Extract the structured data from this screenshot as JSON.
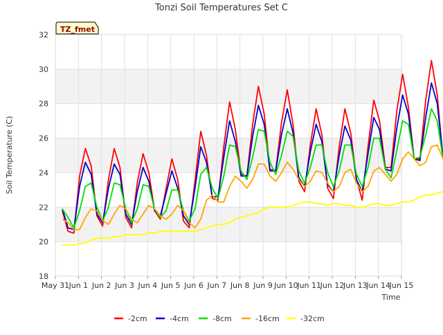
{
  "chart_data": {
    "type": "line",
    "title": "Tonzi Soil Temperatures Set C",
    "xlabel": "Time",
    "ylabel": "Soil Temperature (C)",
    "badge": "TZ_fmet",
    "xlim": [
      0,
      15
    ],
    "ylim": [
      18,
      32
    ],
    "x_ticks": [
      0,
      1,
      2,
      3,
      4,
      5,
      6,
      7,
      8,
      9,
      10,
      11,
      12,
      13,
      14,
      15
    ],
    "x_tick_labels": [
      "May 31",
      "Jun 1",
      "Jun 2",
      "Jun 3",
      "Jun 4",
      "Jun 5",
      "Jun 6",
      "Jun 7",
      "Jun 8",
      "Jun 9",
      "Jun 10",
      "Jun 11",
      "Jun 12",
      "Jun 13",
      "Jun 14",
      "Jun 15"
    ],
    "y_ticks": [
      18,
      20,
      22,
      24,
      26,
      28,
      30,
      32
    ],
    "grid": true,
    "legend_position": "bottom",
    "x_start": 0.3,
    "x_step": 0.25,
    "series": [
      {
        "name": "-2cm",
        "color": "#ff0000",
        "values": [
          21.8,
          20.6,
          20.5,
          23.8,
          25.4,
          24.4,
          21.5,
          20.9,
          23.6,
          25.4,
          24.3,
          21.4,
          20.8,
          23.4,
          25.1,
          24.0,
          21.8,
          21.3,
          23.1,
          24.8,
          23.6,
          21.2,
          20.8,
          23.5,
          26.4,
          25.0,
          22.5,
          22.4,
          25.5,
          28.1,
          26.5,
          23.9,
          23.8,
          26.8,
          29.0,
          27.4,
          24.2,
          24.1,
          26.9,
          28.8,
          26.8,
          23.5,
          22.9,
          25.6,
          27.7,
          26.2,
          23.1,
          22.5,
          25.5,
          27.7,
          26.3,
          23.6,
          22.4,
          25.5,
          28.2,
          27.0,
          24.3,
          24.3,
          27.6,
          29.7,
          27.8,
          24.8,
          24.8,
          28.2,
          30.5,
          28.5,
          24.8,
          24.1,
          26.9,
          29.4,
          28.2,
          25.7
        ]
      },
      {
        "name": "-4cm",
        "color": "#0000cc",
        "values": [
          21.9,
          20.8,
          20.7,
          23.2,
          24.6,
          23.9,
          21.6,
          21.1,
          23.1,
          24.5,
          23.9,
          21.6,
          21.0,
          22.9,
          24.3,
          23.5,
          21.8,
          21.5,
          22.8,
          24.1,
          23.1,
          21.5,
          21.0,
          23.1,
          25.5,
          24.6,
          22.6,
          22.6,
          24.9,
          27.0,
          25.8,
          23.8,
          23.8,
          26.1,
          27.9,
          26.8,
          24.1,
          24.1,
          26.2,
          27.7,
          26.3,
          23.7,
          23.2,
          25.2,
          26.8,
          25.8,
          23.3,
          22.9,
          25.0,
          26.7,
          25.9,
          23.6,
          22.9,
          25.1,
          27.2,
          26.5,
          24.2,
          24.1,
          26.6,
          28.5,
          27.4,
          24.8,
          24.7,
          27.2,
          29.2,
          28.0,
          24.9,
          24.3,
          26.3,
          28.3,
          27.6,
          25.9
        ]
      },
      {
        "name": "-8cm",
        "color": "#00dd00",
        "values": [
          21.9,
          21.4,
          20.8,
          21.8,
          23.2,
          23.4,
          22.0,
          21.2,
          22.0,
          23.4,
          23.3,
          21.9,
          21.1,
          21.9,
          23.3,
          23.2,
          21.9,
          21.4,
          21.8,
          23.0,
          23.0,
          21.8,
          21.2,
          21.9,
          23.9,
          24.3,
          23.1,
          22.5,
          23.8,
          25.6,
          25.5,
          24.1,
          23.6,
          24.9,
          26.5,
          26.4,
          24.6,
          23.9,
          25.0,
          26.4,
          26.1,
          24.1,
          23.4,
          24.3,
          25.6,
          25.6,
          24.0,
          23.2,
          24.1,
          25.6,
          25.6,
          23.9,
          23.2,
          24.3,
          26.0,
          26.0,
          24.2,
          23.7,
          25.3,
          27.0,
          26.8,
          24.8,
          24.9,
          26.2,
          27.7,
          27.0,
          24.8,
          24.7,
          25.6,
          27.0,
          26.7,
          25.9
        ]
      },
      {
        "name": "-16cm",
        "color": "#ffa500",
        "values": [
          21.3,
          21.1,
          20.7,
          20.7,
          21.4,
          21.9,
          21.8,
          21.2,
          21.0,
          21.6,
          22.1,
          21.9,
          21.3,
          21.1,
          21.6,
          22.1,
          21.9,
          21.5,
          21.3,
          21.6,
          22.1,
          21.8,
          21.1,
          20.8,
          21.3,
          22.4,
          22.7,
          22.3,
          22.3,
          23.2,
          23.8,
          23.5,
          23.1,
          23.6,
          24.5,
          24.5,
          23.8,
          23.5,
          24.0,
          24.6,
          24.2,
          23.6,
          23.2,
          23.5,
          24.1,
          24.0,
          23.4,
          22.9,
          23.2,
          24.0,
          24.2,
          23.4,
          22.9,
          23.2,
          24.1,
          24.3,
          23.9,
          23.5,
          23.9,
          24.8,
          25.2,
          24.8,
          24.4,
          24.6,
          25.5,
          25.6,
          24.8,
          24.2,
          24.3,
          25.1,
          25.3,
          25.2
        ]
      },
      {
        "name": "-32cm",
        "color": "#ffff00",
        "values": [
          19.8,
          19.8,
          19.8,
          19.9,
          19.9,
          20.1,
          20.2,
          20.2,
          20.2,
          20.3,
          20.3,
          20.4,
          20.4,
          20.4,
          20.4,
          20.5,
          20.5,
          20.6,
          20.6,
          20.6,
          20.6,
          20.6,
          20.6,
          20.6,
          20.7,
          20.8,
          20.9,
          21.0,
          21.0,
          21.1,
          21.3,
          21.4,
          21.5,
          21.6,
          21.7,
          21.9,
          22.0,
          22.0,
          22.0,
          22.0,
          22.1,
          22.2,
          22.3,
          22.3,
          22.2,
          22.2,
          22.1,
          22.2,
          22.2,
          22.1,
          22.1,
          22.0,
          22.0,
          22.1,
          22.2,
          22.2,
          22.1,
          22.1,
          22.2,
          22.3,
          22.3,
          22.4,
          22.6,
          22.7,
          22.7,
          22.8,
          22.9,
          23.0,
          23.1,
          23.0,
          23.0,
          23.0
        ]
      }
    ]
  }
}
